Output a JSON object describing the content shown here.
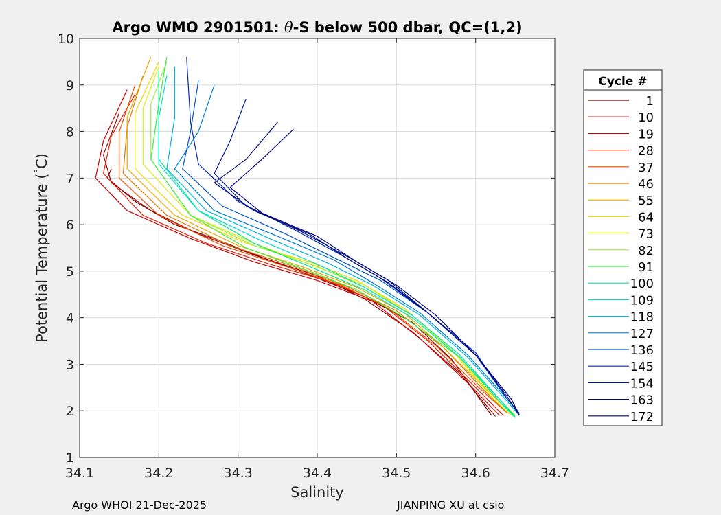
{
  "chart_data": {
    "type": "line",
    "title_prefix": "Argo WMO 2901501: ",
    "title_theta": "θ",
    "title_suffix": "-S below 500 dbar,  QC=(1,2)",
    "xlabel": "Salinity",
    "ylabel_main": "Potential Temperature (",
    "ylabel_degree": "°",
    "ylabel_unit": "C)",
    "xlim": [
      34.1,
      34.7
    ],
    "ylim": [
      1,
      10
    ],
    "xticks": [
      34.1,
      34.2,
      34.3,
      34.4,
      34.5,
      34.6,
      34.7
    ],
    "xtick_labels": [
      "34.1",
      "34.2",
      "34.3",
      "34.4",
      "34.5",
      "34.6",
      "34.7"
    ],
    "yticks": [
      1,
      2,
      3,
      4,
      5,
      6,
      7,
      8,
      9,
      10
    ],
    "ytick_labels": [
      "1",
      "2",
      "3",
      "4",
      "5",
      "6",
      "7",
      "8",
      "9",
      "10"
    ],
    "grid": true,
    "legend_title": "Cycle #",
    "legend_position": "right, outside plot",
    "legend_entries": [
      {
        "label": "1",
        "color": "#7f0000"
      },
      {
        "label": "10",
        "color": "#9b0000"
      },
      {
        "label": "19",
        "color": "#c80000"
      },
      {
        "label": "28",
        "color": "#e81c00"
      },
      {
        "label": "37",
        "color": "#f24a00"
      },
      {
        "label": "46",
        "color": "#e07800"
      },
      {
        "label": "55",
        "color": "#e8a800"
      },
      {
        "label": "64",
        "color": "#f0d800"
      },
      {
        "label": "73",
        "color": "#d8f000"
      },
      {
        "label": "82",
        "color": "#9cf040"
      },
      {
        "label": "91",
        "color": "#3cec3c"
      },
      {
        "label": "100",
        "color": "#00e68c"
      },
      {
        "label": "109",
        "color": "#00dcc8"
      },
      {
        "label": "118",
        "color": "#00b4e0"
      },
      {
        "label": "127",
        "color": "#007cd8"
      },
      {
        "label": "136",
        "color": "#0050c8"
      },
      {
        "label": "145",
        "color": "#0028b4"
      },
      {
        "label": "154",
        "color": "#00148c"
      },
      {
        "label": "163",
        "color": "#000a78"
      },
      {
        "label": "172",
        "color": "#000082"
      }
    ],
    "profile_groups": [
      {
        "cycle": "1",
        "color": "#7f0000",
        "points": [
          [
            34.14,
            7.2
          ],
          [
            34.135,
            7.0
          ],
          [
            34.17,
            6.5
          ],
          [
            34.22,
            6.0
          ],
          [
            34.27,
            5.7
          ],
          [
            34.33,
            5.3
          ],
          [
            34.4,
            4.85
          ],
          [
            34.46,
            4.45
          ],
          [
            34.52,
            3.9
          ],
          [
            34.57,
            3.1
          ],
          [
            34.62,
            1.9
          ]
        ]
      },
      {
        "cycle": "10",
        "color": "#9b0000",
        "points": [
          [
            34.15,
            8.4
          ],
          [
            34.13,
            7.5
          ],
          [
            34.14,
            6.9
          ],
          [
            34.19,
            6.3
          ],
          [
            34.25,
            5.8
          ],
          [
            34.32,
            5.35
          ],
          [
            34.4,
            4.9
          ],
          [
            34.46,
            4.4
          ],
          [
            34.52,
            3.7
          ],
          [
            34.58,
            2.8
          ],
          [
            34.625,
            1.88
          ]
        ]
      },
      {
        "cycle": "19",
        "color": "#c80000",
        "points": [
          [
            34.16,
            8.9
          ],
          [
            34.13,
            7.8
          ],
          [
            34.12,
            7.0
          ],
          [
            34.16,
            6.3
          ],
          [
            34.24,
            5.7
          ],
          [
            34.32,
            5.2
          ],
          [
            34.4,
            4.8
          ],
          [
            34.47,
            4.35
          ],
          [
            34.53,
            3.55
          ],
          [
            34.59,
            2.6
          ],
          [
            34.63,
            1.9
          ]
        ]
      },
      {
        "cycle": "28",
        "color": "#e81c00",
        "points": [
          [
            34.17,
            8.8
          ],
          [
            34.14,
            7.9
          ],
          [
            34.13,
            7.1
          ],
          [
            34.18,
            6.2
          ],
          [
            34.26,
            5.6
          ],
          [
            34.34,
            5.15
          ],
          [
            34.42,
            4.75
          ],
          [
            34.48,
            4.3
          ],
          [
            34.54,
            3.5
          ],
          [
            34.6,
            2.5
          ],
          [
            34.635,
            1.9
          ]
        ]
      },
      {
        "cycle": "37",
        "color": "#f24a00",
        "points": [
          [
            34.17,
            9.0
          ],
          [
            34.15,
            8.0
          ],
          [
            34.15,
            7.0
          ],
          [
            34.2,
            6.2
          ],
          [
            34.28,
            5.55
          ],
          [
            34.36,
            5.1
          ],
          [
            34.43,
            4.7
          ],
          [
            34.49,
            4.2
          ],
          [
            34.55,
            3.4
          ],
          [
            34.61,
            2.4
          ],
          [
            34.64,
            1.95
          ]
        ]
      },
      {
        "cycle": "46",
        "color": "#e07800",
        "points": [
          [
            34.18,
            9.2
          ],
          [
            34.16,
            8.1
          ],
          [
            34.155,
            7.1
          ],
          [
            34.21,
            6.2
          ],
          [
            34.29,
            5.55
          ],
          [
            34.37,
            5.1
          ],
          [
            34.44,
            4.65
          ],
          [
            34.5,
            4.15
          ],
          [
            34.56,
            3.35
          ],
          [
            34.61,
            2.45
          ],
          [
            34.64,
            1.95
          ]
        ]
      },
      {
        "cycle": "55",
        "color": "#e8a800",
        "points": [
          [
            34.19,
            9.6
          ],
          [
            34.16,
            8.3
          ],
          [
            34.16,
            7.2
          ],
          [
            34.22,
            6.2
          ],
          [
            34.3,
            5.55
          ],
          [
            34.38,
            5.1
          ],
          [
            34.45,
            4.65
          ],
          [
            34.51,
            4.1
          ],
          [
            34.56,
            3.35
          ],
          [
            34.62,
            2.35
          ],
          [
            34.645,
            1.95
          ]
        ]
      },
      {
        "cycle": "64",
        "color": "#f0d800",
        "points": [
          [
            34.2,
            9.5
          ],
          [
            34.17,
            8.4
          ],
          [
            34.17,
            7.2
          ],
          [
            34.23,
            6.2
          ],
          [
            34.31,
            5.6
          ],
          [
            34.39,
            5.2
          ],
          [
            34.45,
            4.8
          ],
          [
            34.51,
            4.2
          ],
          [
            34.57,
            3.3
          ],
          [
            34.62,
            2.35
          ],
          [
            34.645,
            1.95
          ]
        ]
      },
      {
        "cycle": "73",
        "color": "#d8f000",
        "points": [
          [
            34.2,
            9.4
          ],
          [
            34.18,
            8.5
          ],
          [
            34.18,
            7.3
          ],
          [
            34.24,
            6.2
          ],
          [
            34.32,
            5.6
          ],
          [
            34.39,
            5.15
          ],
          [
            34.46,
            4.7
          ],
          [
            34.52,
            4.05
          ],
          [
            34.57,
            3.3
          ],
          [
            34.62,
            2.3
          ],
          [
            34.645,
            1.9
          ]
        ]
      },
      {
        "cycle": "82",
        "color": "#9cf040",
        "points": [
          [
            34.21,
            9.5
          ],
          [
            34.19,
            8.6
          ],
          [
            34.19,
            7.4
          ],
          [
            34.24,
            6.2
          ],
          [
            34.32,
            5.55
          ],
          [
            34.4,
            5.1
          ],
          [
            34.46,
            4.65
          ],
          [
            34.52,
            4.05
          ],
          [
            34.58,
            3.2
          ],
          [
            34.63,
            2.25
          ],
          [
            34.65,
            1.9
          ]
        ]
      },
      {
        "cycle": "91",
        "color": "#3cec3c",
        "points": [
          [
            34.21,
            9.6
          ],
          [
            34.2,
            8.6
          ],
          [
            34.19,
            7.4
          ],
          [
            34.24,
            6.2
          ],
          [
            34.31,
            5.5
          ],
          [
            34.39,
            5.0
          ],
          [
            34.45,
            4.6
          ],
          [
            34.51,
            4.0
          ],
          [
            34.58,
            3.15
          ],
          [
            34.63,
            2.25
          ],
          [
            34.65,
            1.88
          ]
        ]
      },
      {
        "cycle": "100",
        "color": "#00e68c",
        "points": [
          [
            34.2,
            9.3
          ],
          [
            34.2,
            8.5
          ],
          [
            34.2,
            7.4
          ],
          [
            34.25,
            6.3
          ],
          [
            34.32,
            5.6
          ],
          [
            34.39,
            5.1
          ],
          [
            34.46,
            4.6
          ],
          [
            34.52,
            4.0
          ],
          [
            34.58,
            3.15
          ],
          [
            34.63,
            2.2
          ],
          [
            34.65,
            1.85
          ]
        ]
      },
      {
        "cycle": "109",
        "color": "#00dcc8",
        "points": [
          [
            34.21,
            9.2
          ],
          [
            34.2,
            8.3
          ],
          [
            34.2,
            7.3
          ],
          [
            34.25,
            6.3
          ],
          [
            34.33,
            5.65
          ],
          [
            34.4,
            5.15
          ],
          [
            34.46,
            4.65
          ],
          [
            34.52,
            4.05
          ],
          [
            34.58,
            3.2
          ],
          [
            34.63,
            2.25
          ],
          [
            34.65,
            1.85
          ]
        ]
      },
      {
        "cycle": "118",
        "color": "#00b4e0",
        "points": [
          [
            34.22,
            9.4
          ],
          [
            34.22,
            8.3
          ],
          [
            34.21,
            7.2
          ],
          [
            34.26,
            6.3
          ],
          [
            34.34,
            5.7
          ],
          [
            34.41,
            5.2
          ],
          [
            34.47,
            4.7
          ],
          [
            34.53,
            4.05
          ],
          [
            34.59,
            3.15
          ],
          [
            34.64,
            2.2
          ],
          [
            34.655,
            1.9
          ]
        ]
      },
      {
        "cycle": "127",
        "color": "#007cd8",
        "points": [
          [
            34.27,
            9.0
          ],
          [
            34.25,
            8.0
          ],
          [
            34.22,
            7.2
          ],
          [
            34.27,
            6.3
          ],
          [
            34.35,
            5.75
          ],
          [
            34.42,
            5.25
          ],
          [
            34.47,
            4.75
          ],
          [
            34.53,
            4.1
          ],
          [
            34.59,
            3.2
          ],
          [
            34.64,
            2.25
          ],
          [
            34.655,
            1.95
          ]
        ]
      },
      {
        "cycle": "136",
        "color": "#0050c8",
        "points": [
          [
            34.25,
            9.1
          ],
          [
            34.24,
            8.0
          ],
          [
            34.23,
            7.2
          ],
          [
            34.28,
            6.4
          ],
          [
            34.36,
            5.8
          ],
          [
            34.42,
            5.3
          ],
          [
            34.48,
            4.8
          ],
          [
            34.54,
            4.1
          ],
          [
            34.6,
            3.2
          ],
          [
            34.64,
            2.25
          ],
          [
            34.655,
            1.95
          ]
        ]
      },
      {
        "cycle": "145",
        "color": "#0028b4",
        "points": [
          [
            34.235,
            9.6
          ],
          [
            34.24,
            8.2
          ],
          [
            34.25,
            7.3
          ],
          [
            34.3,
            6.5
          ],
          [
            34.37,
            5.9
          ],
          [
            34.43,
            5.35
          ],
          [
            34.48,
            4.85
          ],
          [
            34.54,
            4.1
          ],
          [
            34.6,
            3.25
          ],
          [
            34.64,
            2.25
          ],
          [
            34.655,
            1.95
          ]
        ]
      },
      {
        "cycle": "154",
        "color": "#00148c",
        "points": [
          [
            34.31,
            8.7
          ],
          [
            34.29,
            7.8
          ],
          [
            34.27,
            7.1
          ],
          [
            34.31,
            6.4
          ],
          [
            34.38,
            5.85
          ],
          [
            34.44,
            5.3
          ],
          [
            34.49,
            4.8
          ],
          [
            34.54,
            4.1
          ],
          [
            34.6,
            3.2
          ],
          [
            34.64,
            2.3
          ],
          [
            34.655,
            1.9
          ]
        ]
      },
      {
        "cycle": "163",
        "color": "#000a78",
        "points": [
          [
            34.35,
            8.2
          ],
          [
            34.31,
            7.4
          ],
          [
            34.27,
            6.9
          ],
          [
            34.32,
            6.3
          ],
          [
            34.39,
            5.8
          ],
          [
            34.44,
            5.25
          ],
          [
            34.49,
            4.75
          ],
          [
            34.54,
            4.1
          ],
          [
            34.6,
            3.2
          ],
          [
            34.645,
            2.25
          ],
          [
            34.655,
            1.9
          ]
        ]
      },
      {
        "cycle": "172",
        "color": "#000082",
        "points": [
          [
            34.37,
            8.05
          ],
          [
            34.33,
            7.4
          ],
          [
            34.29,
            6.8
          ],
          [
            34.33,
            6.25
          ],
          [
            34.4,
            5.75
          ],
          [
            34.45,
            5.2
          ],
          [
            34.5,
            4.7
          ],
          [
            34.55,
            4.05
          ],
          [
            34.6,
            3.2
          ],
          [
            34.645,
            2.25
          ],
          [
            34.655,
            1.92
          ]
        ]
      }
    ]
  },
  "footer": {
    "left": "Argo WHOI 21-Dec-2025",
    "right": "JIANPING XU at csio"
  }
}
